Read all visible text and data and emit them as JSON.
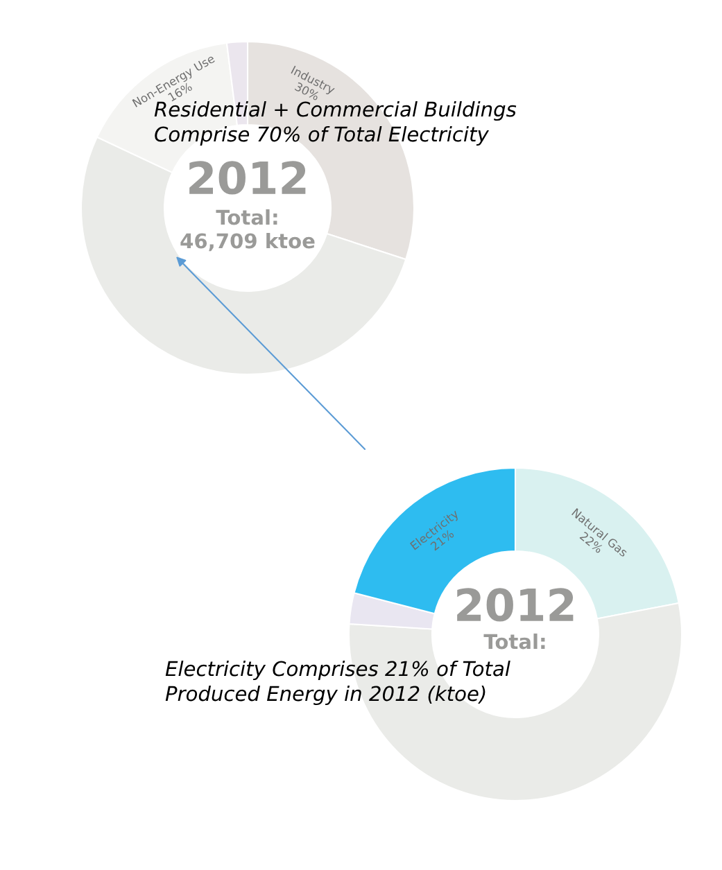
{
  "chart_data": [
    {
      "type": "donut",
      "categories": [
        "Industry",
        null,
        "Non-Energy Use",
        null
      ],
      "values": [
        30,
        52,
        16,
        2
      ],
      "colors": [
        "#e6e2df",
        "#eaebe8",
        "#f4f4f2",
        "#ebe6ee"
      ],
      "value_labels": [
        "30%",
        null,
        "16%",
        null
      ],
      "annotations": [
        "Residential + Commercial Buildings\nComprise 70% of Total Electricity",
        "2012",
        "Total:",
        "46,709 ktoe"
      ]
    },
    {
      "type": "donut",
      "categories": [
        "Natural Gas",
        null,
        null,
        "Electricity"
      ],
      "values": [
        22,
        54,
        3,
        21
      ],
      "colors": [
        "#d9f1f0",
        "#eaebe8",
        "#e9e6f1",
        "#2ebcf0"
      ],
      "value_labels": [
        "22%",
        null,
        null,
        "21%"
      ],
      "annotations": [
        "Electricity Comprises 21% of Total\nProduced Energy in 2012 (ktoe)",
        "2012",
        "Total:"
      ]
    }
  ]
}
